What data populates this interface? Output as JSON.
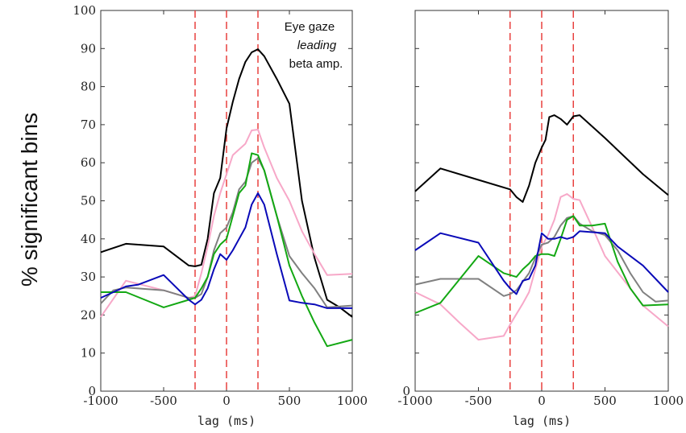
{
  "ylabel": "% significant bins",
  "annotation": {
    "line1": "Eye gaze",
    "line2": "leading",
    "line3": "beta amp."
  },
  "chart_data": [
    {
      "type": "line",
      "xlabel": "lag (ms)",
      "xlim": [
        -1000,
        1000
      ],
      "ylim": [
        0,
        100
      ],
      "xticks": [
        -1000,
        -500,
        0,
        500,
        1000
      ],
      "yticks": [
        0,
        10,
        20,
        30,
        40,
        50,
        60,
        70,
        80,
        90,
        100
      ],
      "vlines": [
        -250,
        0,
        250
      ],
      "series": [
        {
          "color": "#000000",
          "points": [
            [
              -1000,
              36.5
            ],
            [
              -800,
              38.7
            ],
            [
              -500,
              38
            ],
            [
              -300,
              33
            ],
            [
              -250,
              32.8
            ],
            [
              -200,
              33.2
            ],
            [
              -150,
              40
            ],
            [
              -100,
              52
            ],
            [
              -50,
              56
            ],
            [
              0,
              69
            ],
            [
              50,
              76
            ],
            [
              100,
              82
            ],
            [
              150,
              86.5
            ],
            [
              200,
              89
            ],
            [
              250,
              89.8
            ],
            [
              300,
              88
            ],
            [
              400,
              82
            ],
            [
              500,
              75.5
            ],
            [
              600,
              50
            ],
            [
              700,
              35
            ],
            [
              800,
              24
            ],
            [
              900,
              22
            ],
            [
              1000,
              19.5
            ]
          ]
        },
        {
          "color": "#f7a8c8",
          "points": [
            [
              -1000,
              19.5
            ],
            [
              -800,
              29
            ],
            [
              -500,
              26.5
            ],
            [
              -300,
              24.5
            ],
            [
              -250,
              25
            ],
            [
              -200,
              31
            ],
            [
              -150,
              38
            ],
            [
              -100,
              46
            ],
            [
              -50,
              52
            ],
            [
              0,
              57
            ],
            [
              50,
              62
            ],
            [
              100,
              63.5
            ],
            [
              150,
              65
            ],
            [
              200,
              68.5
            ],
            [
              250,
              68.7
            ],
            [
              300,
              64
            ],
            [
              400,
              56
            ],
            [
              500,
              50
            ],
            [
              600,
              42
            ],
            [
              700,
              36
            ],
            [
              800,
              30.5
            ],
            [
              1000,
              30.8
            ]
          ]
        },
        {
          "color": "#808080",
          "points": [
            [
              -1000,
              23
            ],
            [
              -900,
              26.5
            ],
            [
              -800,
              27.2
            ],
            [
              -500,
              26.5
            ],
            [
              -300,
              24.5
            ],
            [
              -250,
              24.5
            ],
            [
              -200,
              25.5
            ],
            [
              -150,
              30
            ],
            [
              -100,
              37
            ],
            [
              -50,
              41.5
            ],
            [
              0,
              43
            ],
            [
              50,
              47
            ],
            [
              100,
              53
            ],
            [
              150,
              55
            ],
            [
              200,
              60
            ],
            [
              250,
              61.2
            ],
            [
              300,
              58
            ],
            [
              400,
              46
            ],
            [
              500,
              35.5
            ],
            [
              600,
              31
            ],
            [
              700,
              27
            ],
            [
              800,
              22
            ],
            [
              1000,
              22.5
            ]
          ]
        },
        {
          "color": "#13a813",
          "points": [
            [
              -1000,
              26
            ],
            [
              -800,
              26
            ],
            [
              -500,
              22
            ],
            [
              -300,
              24
            ],
            [
              -250,
              24.5
            ],
            [
              -200,
              27
            ],
            [
              -150,
              30
            ],
            [
              -100,
              36
            ],
            [
              -50,
              38.5
            ],
            [
              0,
              40
            ],
            [
              50,
              46
            ],
            [
              100,
              52
            ],
            [
              150,
              54
            ],
            [
              200,
              62.5
            ],
            [
              250,
              62
            ],
            [
              300,
              58
            ],
            [
              400,
              46
            ],
            [
              500,
              33
            ],
            [
              600,
              25
            ],
            [
              700,
              18
            ],
            [
              800,
              11.8
            ],
            [
              1000,
              13.5
            ]
          ]
        },
        {
          "color": "#0a0ab8",
          "points": [
            [
              -1000,
              24.5
            ],
            [
              -900,
              26
            ],
            [
              -800,
              27.5
            ],
            [
              -700,
              28
            ],
            [
              -500,
              30.5
            ],
            [
              -300,
              24
            ],
            [
              -250,
              22.8
            ],
            [
              -200,
              24
            ],
            [
              -150,
              27
            ],
            [
              -100,
              32
            ],
            [
              -50,
              36
            ],
            [
              0,
              34.5
            ],
            [
              50,
              37
            ],
            [
              100,
              40
            ],
            [
              150,
              43
            ],
            [
              200,
              49
            ],
            [
              250,
              52
            ],
            [
              300,
              49
            ],
            [
              400,
              36
            ],
            [
              500,
              23.8
            ],
            [
              600,
              23.2
            ],
            [
              700,
              22.8
            ],
            [
              800,
              21.8
            ],
            [
              1000,
              21.8
            ]
          ]
        }
      ]
    },
    {
      "type": "line",
      "xlabel": "lag (ms)",
      "xlim": [
        -1000,
        1000
      ],
      "ylim": [
        0,
        100
      ],
      "xticks": [
        -1000,
        -500,
        0,
        500,
        1000
      ],
      "yticks": [
        0
      ],
      "yticks_unlabeled": [
        10,
        20,
        30,
        40,
        50,
        60,
        70,
        80,
        90,
        100
      ],
      "vlines": [
        -250,
        0,
        250
      ],
      "series": [
        {
          "color": "#000000",
          "points": [
            [
              -1000,
              52.5
            ],
            [
              -800,
              58.5
            ],
            [
              -500,
              55.5
            ],
            [
              -250,
              53
            ],
            [
              -200,
              51
            ],
            [
              -150,
              49.7
            ],
            [
              -100,
              54
            ],
            [
              -50,
              60
            ],
            [
              0,
              64
            ],
            [
              30,
              66
            ],
            [
              60,
              72
            ],
            [
              100,
              72.5
            ],
            [
              150,
              71.5
            ],
            [
              200,
              70
            ],
            [
              250,
              72.2
            ],
            [
              300,
              72.5
            ],
            [
              500,
              66.5
            ],
            [
              800,
              57
            ],
            [
              1000,
              51.5
            ]
          ]
        },
        {
          "color": "#f7a8c8",
          "points": [
            [
              -1000,
              26
            ],
            [
              -800,
              22.8
            ],
            [
              -650,
              18
            ],
            [
              -500,
              13.5
            ],
            [
              -300,
              14.5
            ],
            [
              -250,
              17.5
            ],
            [
              -150,
              23
            ],
            [
              -100,
              26
            ],
            [
              -50,
              32
            ],
            [
              0,
              38
            ],
            [
              50,
              41
            ],
            [
              100,
              45
            ],
            [
              150,
              51
            ],
            [
              200,
              51.8
            ],
            [
              250,
              50.5
            ],
            [
              300,
              50.2
            ],
            [
              400,
              43
            ],
            [
              500,
              35.5
            ],
            [
              700,
              27
            ],
            [
              800,
              22.5
            ],
            [
              1000,
              17
            ]
          ]
        },
        {
          "color": "#808080",
          "points": [
            [
              -1000,
              28
            ],
            [
              -800,
              29.5
            ],
            [
              -600,
              29.5
            ],
            [
              -500,
              29.5
            ],
            [
              -300,
              25
            ],
            [
              -250,
              25.5
            ],
            [
              -200,
              26.5
            ],
            [
              -100,
              31
            ],
            [
              -50,
              35
            ],
            [
              0,
              38.5
            ],
            [
              50,
              39
            ],
            [
              100,
              40.5
            ],
            [
              150,
              43.5
            ],
            [
              200,
              45.5
            ],
            [
              250,
              46
            ],
            [
              300,
              44
            ],
            [
              400,
              42
            ],
            [
              500,
              41
            ],
            [
              600,
              37
            ],
            [
              700,
              31
            ],
            [
              800,
              26
            ],
            [
              900,
              23.5
            ],
            [
              1000,
              23.8
            ]
          ]
        },
        {
          "color": "#13a813",
          "points": [
            [
              -1000,
              20.5
            ],
            [
              -800,
              23.2
            ],
            [
              -500,
              35.5
            ],
            [
              -300,
              31
            ],
            [
              -250,
              30.5
            ],
            [
              -200,
              30
            ],
            [
              -150,
              32
            ],
            [
              -100,
              33.5
            ],
            [
              -50,
              35.5
            ],
            [
              0,
              36
            ],
            [
              50,
              36
            ],
            [
              100,
              35.5
            ],
            [
              150,
              40
            ],
            [
              200,
              45
            ],
            [
              250,
              46
            ],
            [
              300,
              43.5
            ],
            [
              400,
              43.5
            ],
            [
              500,
              44
            ],
            [
              600,
              34
            ],
            [
              700,
              27
            ],
            [
              800,
              22.5
            ],
            [
              1000,
              22.8
            ]
          ]
        },
        {
          "color": "#0a0ab8",
          "points": [
            [
              -1000,
              37
            ],
            [
              -800,
              41.5
            ],
            [
              -500,
              39
            ],
            [
              -300,
              29
            ],
            [
              -250,
              27
            ],
            [
              -200,
              25.5
            ],
            [
              -150,
              29
            ],
            [
              -100,
              29.5
            ],
            [
              -50,
              33
            ],
            [
              0,
              41.5
            ],
            [
              50,
              40
            ],
            [
              100,
              40
            ],
            [
              150,
              40.5
            ],
            [
              200,
              40
            ],
            [
              250,
              40.5
            ],
            [
              300,
              42
            ],
            [
              500,
              41.5
            ],
            [
              600,
              38
            ],
            [
              800,
              33
            ],
            [
              1000,
              26
            ]
          ]
        }
      ]
    }
  ]
}
